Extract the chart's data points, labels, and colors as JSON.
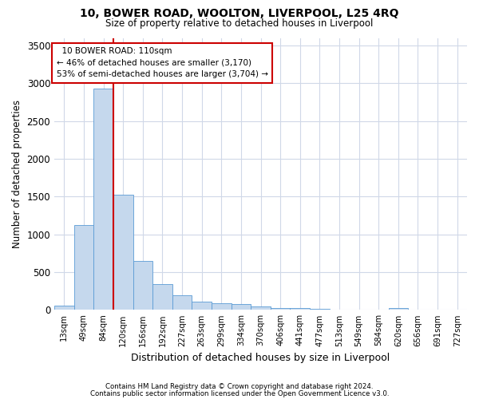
{
  "title1": "10, BOWER ROAD, WOOLTON, LIVERPOOL, L25 4RQ",
  "title2": "Size of property relative to detached houses in Liverpool",
  "xlabel": "Distribution of detached houses by size in Liverpool",
  "ylabel": "Number of detached properties",
  "footnote1": "Contains HM Land Registry data © Crown copyright and database right 2024.",
  "footnote2": "Contains public sector information licensed under the Open Government Licence v3.0.",
  "annotation_line1": "10 BOWER ROAD: 110sqm",
  "annotation_line2": "← 46% of detached houses are smaller (3,170)",
  "annotation_line3": "53% of semi-detached houses are larger (3,704) →",
  "bar_color": "#c5d8ed",
  "bar_edge_color": "#5b9bd5",
  "grid_color": "#d0d8e8",
  "annotation_box_edge": "#cc0000",
  "vline_color": "#cc0000",
  "categories": [
    "13sqm",
    "49sqm",
    "84sqm",
    "120sqm",
    "156sqm",
    "192sqm",
    "227sqm",
    "263sqm",
    "299sqm",
    "334sqm",
    "370sqm",
    "406sqm",
    "441sqm",
    "477sqm",
    "513sqm",
    "549sqm",
    "584sqm",
    "620sqm",
    "656sqm",
    "691sqm",
    "727sqm"
  ],
  "values": [
    55,
    1120,
    2930,
    1520,
    645,
    345,
    195,
    105,
    90,
    80,
    50,
    30,
    25,
    15,
    0,
    0,
    0,
    30,
    0,
    0,
    0
  ],
  "ylim": [
    0,
    3600
  ],
  "vline_x_index": 2.5,
  "background_color": "#ffffff",
  "yticks": [
    0,
    500,
    1000,
    1500,
    2000,
    2500,
    3000,
    3500
  ]
}
